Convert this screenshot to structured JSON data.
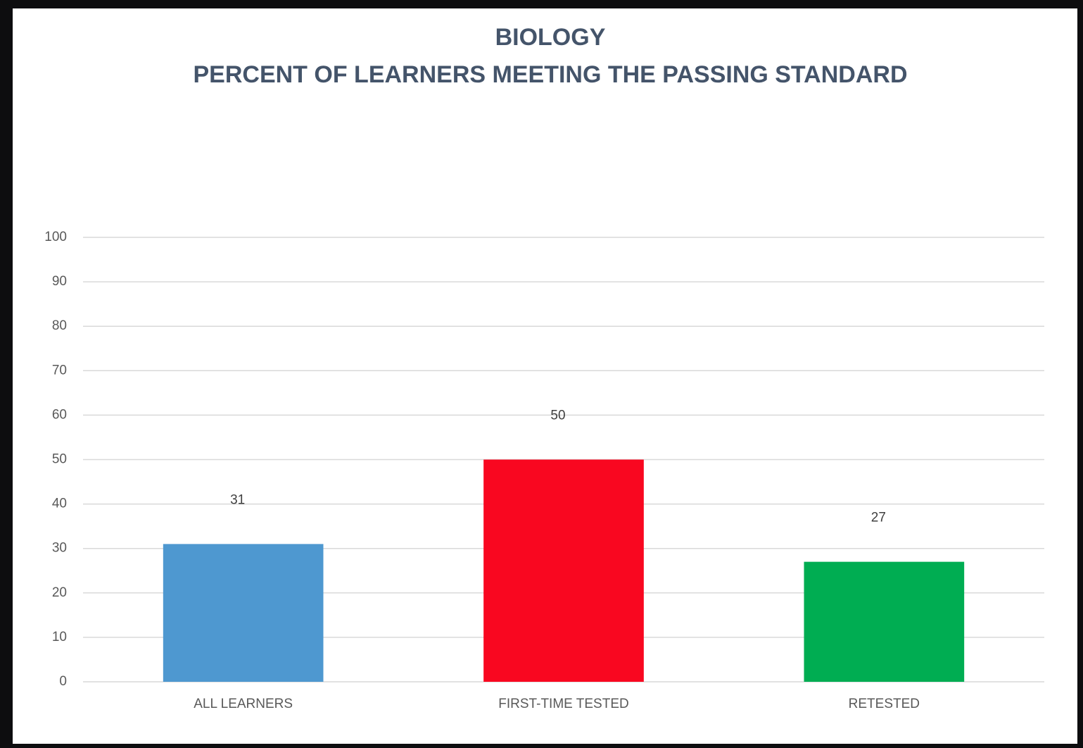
{
  "chart_data": {
    "type": "bar",
    "title": "BIOLOGY",
    "subtitle": "PERCENT OF LEARNERS MEETING THE PASSING STANDARD",
    "categories": [
      "ALL LEARNERS",
      "FIRST-TIME TESTED",
      "RETESTED"
    ],
    "values": [
      31,
      50,
      27
    ],
    "colors": [
      "#4e98d0",
      "#f90720",
      "#00ad52"
    ],
    "ylim": [
      0,
      100
    ],
    "yticks": [
      0,
      10,
      20,
      30,
      40,
      50,
      60,
      70,
      80,
      90,
      100
    ],
    "grid": true
  }
}
